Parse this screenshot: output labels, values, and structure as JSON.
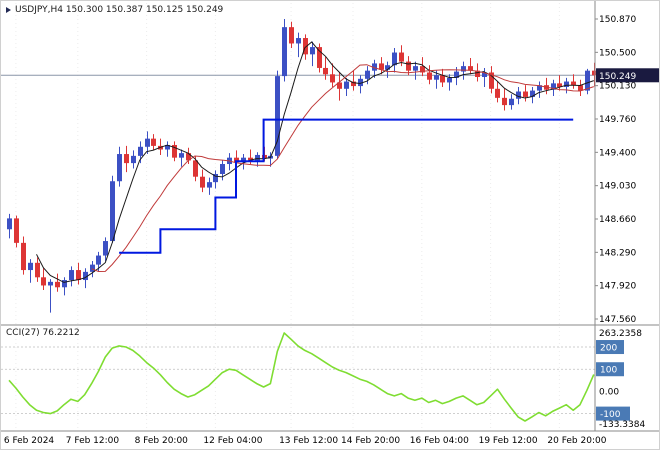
{
  "header": {
    "symbol_info": "USDJPY,H4 150.300 150.387 150.125 150.249"
  },
  "indicator": {
    "label": "CCI(27) 76.2212"
  },
  "colors": {
    "bull": "#3c50c4",
    "bear": "#dd3535",
    "ma_fast": "#1a1a1a",
    "ma_slow": "#c03a3a",
    "step_line": "#0018e0",
    "cci_line": "#7fdd32",
    "price_line": "#8a96a8",
    "price_badge_bg": "#1a1a40",
    "level_badge_bg": "#4a7ab5",
    "axis_text": "#000000",
    "grid": "#ececec",
    "separator": "#8a8a8a",
    "cci_level_line": "#bfbfbf"
  },
  "chart_data": {
    "type": "candlestick",
    "symbol": "USDJPY",
    "timeframe": "H4",
    "title": "USDJPY,H4",
    "ohlc_display": {
      "open": "150.300",
      "high": "150.387",
      "low": "150.125",
      "close": "150.249"
    },
    "price_axis": {
      "labels": [
        "150.870",
        "150.500",
        "150.130",
        "149.760",
        "149.400",
        "149.030",
        "148.660",
        "148.290",
        "147.920",
        "147.560"
      ],
      "current_price": 150.249,
      "current_price_label": "150.249"
    },
    "time_axis": {
      "labels": [
        "6 Feb 2024",
        "7 Feb 12:00",
        "8 Feb 20:00",
        "12 Feb 04:00",
        "13 Feb 12:00",
        "14 Feb 20:00",
        "16 Feb 04:00",
        "19 Feb 12:00",
        "20 Feb 20:00"
      ],
      "positions": [
        1,
        10,
        20,
        30,
        41,
        50,
        60,
        70,
        80
      ]
    },
    "candles": [
      [
        148.55,
        148.72,
        148.45,
        148.67
      ],
      [
        148.67,
        148.7,
        148.35,
        148.4
      ],
      [
        148.4,
        148.47,
        148.05,
        148.1
      ],
      [
        148.1,
        148.22,
        147.96,
        148.18
      ],
      [
        148.18,
        148.24,
        147.97,
        148.02
      ],
      [
        148.02,
        148.12,
        147.88,
        147.93
      ],
      [
        147.93,
        148.0,
        147.63,
        147.97
      ],
      [
        147.97,
        148.06,
        147.86,
        147.91
      ],
      [
        147.91,
        148.02,
        147.82,
        147.99
      ],
      [
        147.99,
        148.14,
        147.92,
        148.1
      ],
      [
        148.1,
        148.18,
        147.94,
        147.99
      ],
      [
        147.99,
        148.12,
        147.9,
        148.08
      ],
      [
        148.08,
        148.2,
        148.02,
        148.16
      ],
      [
        148.16,
        148.3,
        148.08,
        148.26
      ],
      [
        148.26,
        148.46,
        148.2,
        148.42
      ],
      [
        148.42,
        149.14,
        148.4,
        149.08
      ],
      [
        149.08,
        149.46,
        149.02,
        149.38
      ],
      [
        149.38,
        149.47,
        149.18,
        149.28
      ],
      [
        149.28,
        149.42,
        149.22,
        149.36
      ],
      [
        149.36,
        149.52,
        149.28,
        149.46
      ],
      [
        149.46,
        149.63,
        149.38,
        149.55
      ],
      [
        149.55,
        149.6,
        149.42,
        149.47
      ],
      [
        149.47,
        149.55,
        149.37,
        149.43
      ],
      [
        149.43,
        149.52,
        149.35,
        149.48
      ],
      [
        149.48,
        149.52,
        149.3,
        149.34
      ],
      [
        149.34,
        149.43,
        149.24,
        149.39
      ],
      [
        149.39,
        149.45,
        149.27,
        149.31
      ],
      [
        149.31,
        149.36,
        149.08,
        149.13
      ],
      [
        149.13,
        149.21,
        148.96,
        149.01
      ],
      [
        149.01,
        149.12,
        148.93,
        149.07
      ],
      [
        149.07,
        149.2,
        149.0,
        149.16
      ],
      [
        149.16,
        149.31,
        149.09,
        149.27
      ],
      [
        149.27,
        149.39,
        149.2,
        149.34
      ],
      [
        149.34,
        149.42,
        149.25,
        149.29
      ],
      [
        149.29,
        149.38,
        149.21,
        149.34
      ],
      [
        149.34,
        149.43,
        149.27,
        149.31
      ],
      [
        149.31,
        149.4,
        149.24,
        149.37
      ],
      [
        149.37,
        149.46,
        149.3,
        149.33
      ],
      [
        149.33,
        149.4,
        149.24,
        149.36
      ],
      [
        149.36,
        150.3,
        149.33,
        150.24
      ],
      [
        150.24,
        150.87,
        150.18,
        150.78
      ],
      [
        150.78,
        150.84,
        150.55,
        150.6
      ],
      [
        150.6,
        150.72,
        150.45,
        150.66
      ],
      [
        150.66,
        150.7,
        150.42,
        150.48
      ],
      [
        150.48,
        150.62,
        150.35,
        150.56
      ],
      [
        150.56,
        150.6,
        150.28,
        150.33
      ],
      [
        150.33,
        150.45,
        150.2,
        150.26
      ],
      [
        150.26,
        150.38,
        150.12,
        150.17
      ],
      [
        150.17,
        150.28,
        149.97,
        150.1
      ],
      [
        150.1,
        150.22,
        150.02,
        150.18
      ],
      [
        150.18,
        150.3,
        150.08,
        150.13
      ],
      [
        150.13,
        150.25,
        150.05,
        150.21
      ],
      [
        150.21,
        150.35,
        150.15,
        150.3
      ],
      [
        150.3,
        150.42,
        150.22,
        150.38
      ],
      [
        150.38,
        150.45,
        150.26,
        150.31
      ],
      [
        150.31,
        150.4,
        150.22,
        150.36
      ],
      [
        150.36,
        150.55,
        150.28,
        150.5
      ],
      [
        150.5,
        150.58,
        150.35,
        150.4
      ],
      [
        150.4,
        150.46,
        150.25,
        150.3
      ],
      [
        150.3,
        150.4,
        150.2,
        150.35
      ],
      [
        150.35,
        150.45,
        150.24,
        150.28
      ],
      [
        150.28,
        150.36,
        150.15,
        150.2
      ],
      [
        150.2,
        150.3,
        150.1,
        150.25
      ],
      [
        150.25,
        150.32,
        150.12,
        150.17
      ],
      [
        150.17,
        150.26,
        150.08,
        150.22
      ],
      [
        150.22,
        150.34,
        150.14,
        150.29
      ],
      [
        150.29,
        150.4,
        150.2,
        150.35
      ],
      [
        150.35,
        150.44,
        150.26,
        150.3
      ],
      [
        150.3,
        150.38,
        150.18,
        150.23
      ],
      [
        150.23,
        150.33,
        150.12,
        150.28
      ],
      [
        150.28,
        150.35,
        150.05,
        150.1
      ],
      [
        150.1,
        150.18,
        149.95,
        150.0
      ],
      [
        150.0,
        150.1,
        149.86,
        149.92
      ],
      [
        149.92,
        150.04,
        149.87,
        149.99
      ],
      [
        149.99,
        150.12,
        149.93,
        150.07
      ],
      [
        150.07,
        150.14,
        149.96,
        150.01
      ],
      [
        150.01,
        150.12,
        149.94,
        150.08
      ],
      [
        150.08,
        150.18,
        150.0,
        150.14
      ],
      [
        150.14,
        150.22,
        150.04,
        150.09
      ],
      [
        150.09,
        150.2,
        150.02,
        150.16
      ],
      [
        150.16,
        150.25,
        150.08,
        150.12
      ],
      [
        150.12,
        150.22,
        150.05,
        150.18
      ],
      [
        150.18,
        150.26,
        150.1,
        150.14
      ],
      [
        150.14,
        150.2,
        150.02,
        150.08
      ],
      [
        150.08,
        150.32,
        150.04,
        150.3
      ],
      [
        150.3,
        150.387,
        150.125,
        150.249
      ]
    ],
    "overlays": {
      "ma_fast_period": 5,
      "ma_slow_period": 13,
      "blue_step_segments": [
        [
          16,
          21,
          148.29
        ],
        [
          22,
          29,
          148.55
        ],
        [
          30,
          32,
          148.9
        ],
        [
          33,
          36,
          149.3
        ],
        [
          37,
          82,
          149.76
        ]
      ]
    },
    "cci": {
      "period": 27,
      "current": 76.2212,
      "levels": [
        200,
        100,
        -100
      ],
      "level_labels": [
        "200",
        "100",
        "-100"
      ],
      "axis_labels": {
        "max": "263.2358",
        "zero": "0.00",
        "min": "-133.3384"
      },
      "values": [
        50,
        15,
        -25,
        -60,
        -85,
        -95,
        -100,
        -88,
        -60,
        -35,
        -45,
        -15,
        35,
        90,
        155,
        195,
        205,
        200,
        185,
        160,
        130,
        105,
        75,
        40,
        10,
        -10,
        -25,
        -15,
        5,
        25,
        55,
        85,
        100,
        95,
        75,
        55,
        35,
        20,
        35,
        180,
        263.24,
        235,
        205,
        185,
        170,
        150,
        130,
        110,
        95,
        85,
        70,
        55,
        45,
        30,
        10,
        -10,
        -20,
        -10,
        -30,
        -40,
        -30,
        -50,
        -40,
        -55,
        -45,
        -30,
        -20,
        -40,
        -60,
        -50,
        -20,
        10,
        -35,
        -75,
        -115,
        -133.34,
        -115,
        -95,
        -110,
        -90,
        -75,
        -60,
        -85,
        -60,
        5,
        76.22
      ]
    }
  }
}
